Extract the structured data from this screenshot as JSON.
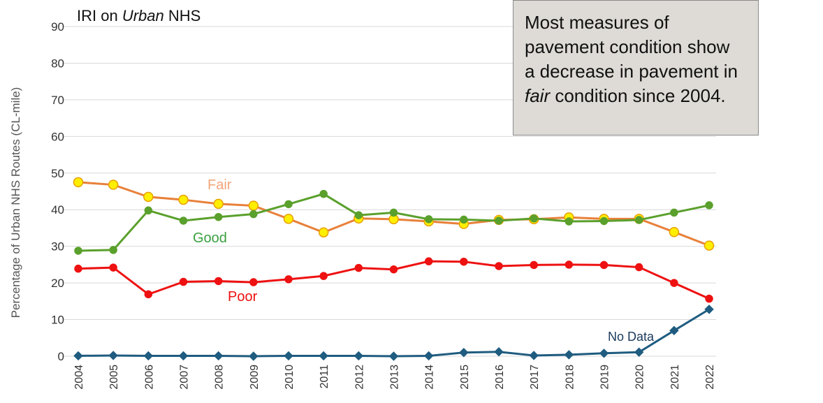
{
  "chart_data": {
    "type": "line",
    "title": [
      {
        "text": "IRI on "
      },
      {
        "text": "Urban",
        "italic": true
      },
      {
        "text": " NHS"
      }
    ],
    "y_label": "Percentage of Urban NHS Routes (CL-mile)",
    "annotation": [
      [
        {
          "text": "Most measures of"
        }
      ],
      [
        {
          "text": "pavement condition show"
        }
      ],
      [
        {
          "text": "a decrease in pavement in"
        }
      ],
      [
        {
          "text": "fair",
          "italic": true
        },
        {
          "text": " condition since 2004."
        }
      ]
    ],
    "categories": [
      "2004",
      "2005",
      "2006",
      "2007",
      "2008",
      "2009",
      "2010",
      "2011",
      "2012",
      "2013",
      "2014",
      "2015",
      "2016",
      "2017",
      "2018",
      "2019",
      "2020",
      "2021",
      "2022"
    ],
    "series": [
      {
        "name": "Fair",
        "color": "#e8803a",
        "label_color": "#f2a57a",
        "marker": "circle",
        "marker_fill": "#ffee00",
        "marker_stroke": "#e8a000",
        "values": [
          47.5,
          46.8,
          43.5,
          42.7,
          41.6,
          41.1,
          37.5,
          33.8,
          37.6,
          37.4,
          36.8,
          36.1,
          37.2,
          37.4,
          37.9,
          37.5,
          37.5,
          33.9,
          30.2
        ]
      },
      {
        "name": "Good",
        "color": "#5aa02c",
        "label_color": "#3aa040",
        "marker": "circle",
        "marker_fill": "#5aa02c",
        "marker_stroke": "#5aa02c",
        "values": [
          28.8,
          29.0,
          39.8,
          37.0,
          38.0,
          38.8,
          41.5,
          44.3,
          38.5,
          39.2,
          37.4,
          37.3,
          37.0,
          37.6,
          36.8,
          36.9,
          37.2,
          39.2,
          41.2
        ]
      },
      {
        "name": "Poor",
        "color": "#ee1111",
        "label_color": "#ee1111",
        "marker": "circle",
        "marker_fill": "#ee1111",
        "marker_stroke": "#ee1111",
        "values": [
          23.9,
          24.2,
          16.9,
          20.3,
          20.5,
          20.2,
          21.0,
          21.9,
          24.1,
          23.7,
          25.9,
          25.8,
          24.6,
          24.9,
          25.0,
          24.9,
          24.3,
          20.0,
          15.7
        ]
      },
      {
        "name": "No Data",
        "color": "#1f5c80",
        "label_color": "#1a3a5c",
        "marker": "diamond",
        "marker_fill": "#1f5c80",
        "marker_stroke": "#1f5c80",
        "values": [
          0.1,
          0.2,
          0.1,
          0.1,
          0.1,
          0.0,
          0.1,
          0.1,
          0.1,
          0.0,
          0.1,
          1.0,
          1.2,
          0.2,
          0.4,
          0.8,
          1.1,
          7.0,
          12.8
        ]
      }
    ],
    "ylim": [
      0,
      90
    ],
    "yticks": [
      0,
      10,
      20,
      30,
      40,
      50,
      60,
      70,
      80,
      90
    ],
    "grid": true
  }
}
